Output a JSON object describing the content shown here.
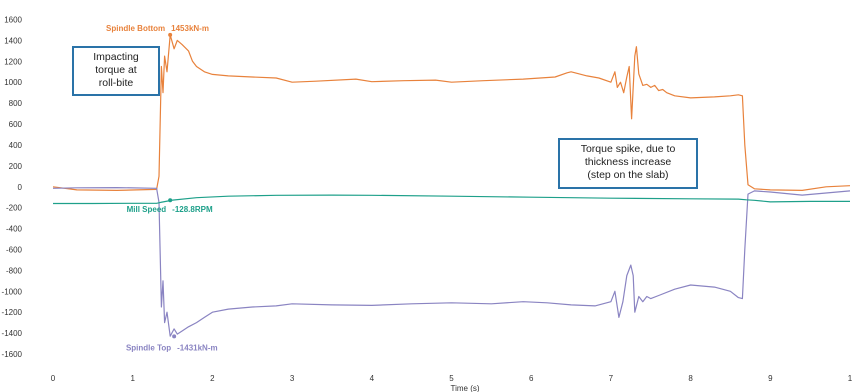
{
  "chart_data": {
    "type": "line",
    "xlabel": "Time (s)",
    "xlim": [
      0,
      10
    ],
    "ylim": [
      -1700,
      1700
    ],
    "x_ticks": [
      "0",
      "1",
      "2",
      "3",
      "4",
      "5",
      "6",
      "7",
      "8",
      "9",
      "1"
    ],
    "y_ticks": [
      "1600",
      "1400",
      "1200",
      "1000",
      "800",
      "600",
      "400",
      "200",
      "0",
      "-200",
      "-400",
      "-600",
      "-800",
      "-1000",
      "-1200",
      "-1400",
      "-1600"
    ],
    "grid": false,
    "colors": {
      "spindle_bottom": "#e8823c",
      "spindle_top": "#8a84c2",
      "mill_speed": "#1ea08a",
      "callout_border": "#2a73a8"
    },
    "series": [
      {
        "key": "spindle_bottom",
        "label": "Spindle Bottom",
        "marker_value": "1453kN-m",
        "marker_x": 1.47,
        "marker_y": 1453,
        "points": [
          [
            0,
            0
          ],
          [
            0.3,
            -30
          ],
          [
            0.8,
            -35
          ],
          [
            1.3,
            -25
          ],
          [
            1.33,
            100
          ],
          [
            1.36,
            1150
          ],
          [
            1.38,
            900
          ],
          [
            1.4,
            1250
          ],
          [
            1.43,
            1100
          ],
          [
            1.47,
            1453
          ],
          [
            1.52,
            1320
          ],
          [
            1.56,
            1400
          ],
          [
            1.62,
            1360
          ],
          [
            1.7,
            1300
          ],
          [
            1.75,
            1200
          ],
          [
            1.8,
            1150
          ],
          [
            1.9,
            1100
          ],
          [
            2.0,
            1075
          ],
          [
            2.2,
            1060
          ],
          [
            2.5,
            1050
          ],
          [
            2.8,
            1040
          ],
          [
            3.0,
            1000
          ],
          [
            3.3,
            1010
          ],
          [
            3.8,
            1030
          ],
          [
            4.0,
            1005
          ],
          [
            4.4,
            1015
          ],
          [
            4.8,
            1020
          ],
          [
            5.0,
            1000
          ],
          [
            5.4,
            1015
          ],
          [
            5.9,
            1030
          ],
          [
            6.3,
            1050
          ],
          [
            6.45,
            1090
          ],
          [
            6.5,
            1100
          ],
          [
            6.55,
            1090
          ],
          [
            6.7,
            1060
          ],
          [
            6.85,
            1040
          ],
          [
            7.0,
            1000
          ],
          [
            7.05,
            1100
          ],
          [
            7.08,
            950
          ],
          [
            7.12,
            1000
          ],
          [
            7.16,
            900
          ],
          [
            7.2,
            1050
          ],
          [
            7.23,
            1150
          ],
          [
            7.26,
            650
          ],
          [
            7.3,
            1250
          ],
          [
            7.32,
            1340
          ],
          [
            7.35,
            1080
          ],
          [
            7.4,
            970
          ],
          [
            7.45,
            980
          ],
          [
            7.5,
            950
          ],
          [
            7.55,
            970
          ],
          [
            7.6,
            920
          ],
          [
            7.65,
            930
          ],
          [
            7.7,
            900
          ],
          [
            7.8,
            870
          ],
          [
            8.0,
            850
          ],
          [
            8.3,
            860
          ],
          [
            8.5,
            870
          ],
          [
            8.6,
            880
          ],
          [
            8.65,
            870
          ],
          [
            8.68,
            400
          ],
          [
            8.72,
            20
          ],
          [
            8.8,
            -20
          ],
          [
            9.0,
            -30
          ],
          [
            9.4,
            -35
          ],
          [
            9.7,
            0
          ],
          [
            10,
            10
          ]
        ]
      },
      {
        "key": "spindle_top",
        "label": "Spindle Top",
        "marker_value": "-1431kN-m",
        "marker_x": 1.52,
        "marker_y": -1431,
        "points": [
          [
            0,
            -15
          ],
          [
            0.3,
            -10
          ],
          [
            0.8,
            -8
          ],
          [
            1.3,
            -15
          ],
          [
            1.33,
            -150
          ],
          [
            1.36,
            -1150
          ],
          [
            1.38,
            -900
          ],
          [
            1.4,
            -1300
          ],
          [
            1.43,
            -1200
          ],
          [
            1.47,
            -1430
          ],
          [
            1.52,
            -1360
          ],
          [
            1.56,
            -1410
          ],
          [
            1.62,
            -1380
          ],
          [
            1.7,
            -1340
          ],
          [
            1.8,
            -1300
          ],
          [
            1.9,
            -1250
          ],
          [
            2.0,
            -1200
          ],
          [
            2.2,
            -1170
          ],
          [
            2.5,
            -1150
          ],
          [
            2.8,
            -1140
          ],
          [
            3.0,
            -1120
          ],
          [
            3.5,
            -1130
          ],
          [
            4.0,
            -1135
          ],
          [
            4.5,
            -1120
          ],
          [
            5.0,
            -1110
          ],
          [
            5.5,
            -1120
          ],
          [
            5.9,
            -1100
          ],
          [
            6.2,
            -1110
          ],
          [
            6.5,
            -1130
          ],
          [
            6.8,
            -1140
          ],
          [
            7.0,
            -1100
          ],
          [
            7.05,
            -1000
          ],
          [
            7.1,
            -1250
          ],
          [
            7.15,
            -1100
          ],
          [
            7.2,
            -850
          ],
          [
            7.25,
            -750
          ],
          [
            7.28,
            -850
          ],
          [
            7.3,
            -1200
          ],
          [
            7.35,
            -1050
          ],
          [
            7.4,
            -1100
          ],
          [
            7.45,
            -1050
          ],
          [
            7.5,
            -1070
          ],
          [
            7.6,
            -1040
          ],
          [
            7.8,
            -980
          ],
          [
            8.0,
            -940
          ],
          [
            8.3,
            -960
          ],
          [
            8.5,
            -1000
          ],
          [
            8.6,
            -1060
          ],
          [
            8.65,
            -1070
          ],
          [
            8.68,
            -600
          ],
          [
            8.72,
            -70
          ],
          [
            8.8,
            -40
          ],
          [
            9.0,
            -50
          ],
          [
            9.4,
            -80
          ],
          [
            9.7,
            -60
          ],
          [
            10,
            -40
          ]
        ]
      },
      {
        "key": "mill_speed",
        "label": "Mill Speed",
        "marker_value": "-128.8RPM",
        "marker_x": 1.47,
        "marker_y": -128.8,
        "points": [
          [
            0,
            -160
          ],
          [
            0.5,
            -160
          ],
          [
            1.0,
            -158
          ],
          [
            1.3,
            -158
          ],
          [
            1.35,
            -150
          ],
          [
            1.5,
            -128
          ],
          [
            1.8,
            -105
          ],
          [
            2.2,
            -90
          ],
          [
            2.8,
            -82
          ],
          [
            3.5,
            -80
          ],
          [
            4.0,
            -82
          ],
          [
            5.0,
            -90
          ],
          [
            6.0,
            -100
          ],
          [
            7.0,
            -110
          ],
          [
            8.0,
            -115
          ],
          [
            8.6,
            -118
          ],
          [
            8.7,
            -125
          ],
          [
            8.8,
            -130
          ],
          [
            9.0,
            -145
          ],
          [
            9.5,
            -140
          ],
          [
            10,
            -140
          ]
        ]
      }
    ],
    "annotations": [
      {
        "name": "impacting-torque-callout",
        "lines": [
          "Impacting",
          "torque at",
          "roll-bite"
        ]
      },
      {
        "name": "torque-spike-callout",
        "lines": [
          "Torque spike, due to",
          "thickness increase",
          "(step on the slab)"
        ]
      }
    ]
  }
}
